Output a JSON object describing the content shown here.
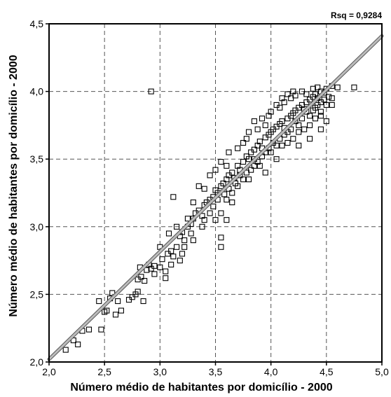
{
  "chart_data": {
    "type": "scatter",
    "xlabel": "Número médio de habitantes por domicílio - 2000",
    "ylabel": "Número médio de habitantes por domicílio - 2000",
    "annotation": "Rsq = 0,9284",
    "xlim": [
      2.0,
      5.0
    ],
    "ylim": [
      2.0,
      4.5
    ],
    "x_ticks": [
      2.0,
      2.5,
      3.0,
      3.5,
      4.0,
      4.5,
      5.0
    ],
    "y_ticks": [
      2.0,
      2.5,
      3.0,
      3.5,
      4.0,
      4.5
    ],
    "x_tick_labels": [
      "2,0",
      "2,5",
      "3,0",
      "3,5",
      "4,0",
      "4,5",
      "5,0"
    ],
    "y_tick_labels": [
      "2,0",
      "2,5",
      "3,0",
      "3,5",
      "4,0",
      "4,5"
    ],
    "grid": true,
    "grid_style": "dashed",
    "marker": "open-square",
    "fit_line": {
      "x": [
        2.0,
        5.0
      ],
      "y": [
        2.02,
        4.41
      ],
      "color": "#bbbbbb"
    },
    "series": [
      {
        "points": [
          [
            2.15,
            2.09
          ],
          [
            2.22,
            2.16
          ],
          [
            2.26,
            2.13
          ],
          [
            2.3,
            2.23
          ],
          [
            2.36,
            2.24
          ],
          [
            2.47,
            2.24
          ],
          [
            2.45,
            2.45
          ],
          [
            2.52,
            2.38
          ],
          [
            2.5,
            2.37
          ],
          [
            2.55,
            2.47
          ],
          [
            2.57,
            2.51
          ],
          [
            2.62,
            2.45
          ],
          [
            2.65,
            2.38
          ],
          [
            2.72,
            2.46
          ],
          [
            2.75,
            2.48
          ],
          [
            2.78,
            2.5
          ],
          [
            2.8,
            2.61
          ],
          [
            2.83,
            2.63
          ],
          [
            2.86,
            2.6
          ],
          [
            2.8,
            2.52
          ],
          [
            2.88,
            2.68
          ],
          [
            2.92,
            2.69
          ],
          [
            2.95,
            2.71
          ],
          [
            3.0,
            2.7
          ],
          [
            3.02,
            2.76
          ],
          [
            3.05,
            2.67
          ],
          [
            3.07,
            2.8
          ],
          [
            3.1,
            2.82
          ],
          [
            3.12,
            2.78
          ],
          [
            3.15,
            2.85
          ],
          [
            3.18,
            2.93
          ],
          [
            3.2,
            2.96
          ],
          [
            3.22,
            2.9
          ],
          [
            3.25,
            3.0
          ],
          [
            3.28,
            3.02
          ],
          [
            3.3,
            3.06
          ],
          [
            3.32,
            3.1
          ],
          [
            3.35,
            3.12
          ],
          [
            3.38,
            3.08
          ],
          [
            3.4,
            3.16
          ],
          [
            3.42,
            3.18
          ],
          [
            3.45,
            3.2
          ],
          [
            3.48,
            3.22
          ],
          [
            3.5,
            3.27
          ],
          [
            3.52,
            3.25
          ],
          [
            3.55,
            3.3
          ],
          [
            3.57,
            3.32
          ],
          [
            3.6,
            3.35
          ],
          [
            3.62,
            3.38
          ],
          [
            3.65,
            3.4
          ],
          [
            3.67,
            3.36
          ],
          [
            3.7,
            3.45
          ],
          [
            3.72,
            3.42
          ],
          [
            3.75,
            3.48
          ],
          [
            3.78,
            3.52
          ],
          [
            3.8,
            3.5
          ],
          [
            3.82,
            3.55
          ],
          [
            3.85,
            3.57
          ],
          [
            3.88,
            3.6
          ],
          [
            3.9,
            3.63
          ],
          [
            3.92,
            3.58
          ],
          [
            3.95,
            3.66
          ],
          [
            3.98,
            3.68
          ],
          [
            4.0,
            3.7
          ],
          [
            4.02,
            3.72
          ],
          [
            4.05,
            3.74
          ],
          [
            4.08,
            3.76
          ],
          [
            4.1,
            3.78
          ],
          [
            4.12,
            3.73
          ],
          [
            4.15,
            3.8
          ],
          [
            4.18,
            3.82
          ],
          [
            4.2,
            3.84
          ],
          [
            4.22,
            3.86
          ],
          [
            4.25,
            3.88
          ],
          [
            4.28,
            3.9
          ],
          [
            4.3,
            3.87
          ],
          [
            4.32,
            3.92
          ],
          [
            4.35,
            3.94
          ],
          [
            4.38,
            3.96
          ],
          [
            4.4,
            3.98
          ],
          [
            4.42,
            3.95
          ],
          [
            4.45,
            4.0
          ],
          [
            4.48,
            3.99
          ],
          [
            4.5,
            4.02
          ],
          [
            4.55,
            4.04
          ],
          [
            4.6,
            4.03
          ],
          [
            4.75,
            4.03
          ],
          [
            2.92,
            4.0
          ],
          [
            3.12,
            3.22
          ],
          [
            3.25,
            3.06
          ],
          [
            3.4,
            3.28
          ],
          [
            3.3,
            3.18
          ],
          [
            3.55,
            2.85
          ],
          [
            3.55,
            2.92
          ],
          [
            3.38,
            3.0
          ],
          [
            3.6,
            3.2
          ],
          [
            3.65,
            3.18
          ],
          [
            3.7,
            3.3
          ],
          [
            3.8,
            3.35
          ],
          [
            3.85,
            3.45
          ],
          [
            3.6,
            3.45
          ],
          [
            3.75,
            3.62
          ],
          [
            3.8,
            3.7
          ],
          [
            3.85,
            3.78
          ],
          [
            3.95,
            3.75
          ],
          [
            4.0,
            3.85
          ],
          [
            4.05,
            3.9
          ],
          [
            4.1,
            3.95
          ],
          [
            4.15,
            3.98
          ],
          [
            4.2,
            4.0
          ],
          [
            4.1,
            3.6
          ],
          [
            4.15,
            3.62
          ],
          [
            4.25,
            3.7
          ],
          [
            4.3,
            3.72
          ],
          [
            4.35,
            3.75
          ],
          [
            4.4,
            3.8
          ],
          [
            4.45,
            3.85
          ],
          [
            4.5,
            3.9
          ],
          [
            4.55,
            3.95
          ],
          [
            4.2,
            3.65
          ],
          [
            4.0,
            3.55
          ],
          [
            3.9,
            3.45
          ],
          [
            4.05,
            3.5
          ],
          [
            3.95,
            3.4
          ],
          [
            4.25,
            3.6
          ],
          [
            4.35,
            3.65
          ],
          [
            4.45,
            3.72
          ],
          [
            4.5,
            3.78
          ],
          [
            3.45,
            3.1
          ],
          [
            3.5,
            3.05
          ],
          [
            3.2,
            2.8
          ],
          [
            3.1,
            2.72
          ],
          [
            3.05,
            2.62
          ],
          [
            2.95,
            2.65
          ],
          [
            3.08,
            2.95
          ],
          [
            3.15,
            3.0
          ],
          [
            2.85,
            2.45
          ],
          [
            2.6,
            2.35
          ],
          [
            2.82,
            2.7
          ],
          [
            3.3,
            2.9
          ],
          [
            3.35,
            3.3
          ],
          [
            3.45,
            3.38
          ],
          [
            3.5,
            3.42
          ],
          [
            3.55,
            3.48
          ],
          [
            3.62,
            3.55
          ],
          [
            3.7,
            3.58
          ],
          [
            3.78,
            3.65
          ],
          [
            3.88,
            3.72
          ],
          [
            3.92,
            3.8
          ],
          [
            3.98,
            3.82
          ],
          [
            4.08,
            3.88
          ],
          [
            4.12,
            3.92
          ],
          [
            4.18,
            3.95
          ],
          [
            4.22,
            3.97
          ],
          [
            4.28,
            4.0
          ],
          [
            4.32,
            3.98
          ],
          [
            4.38,
            4.02
          ],
          [
            4.42,
            4.03
          ],
          [
            4.28,
            3.8
          ],
          [
            4.32,
            3.85
          ],
          [
            4.22,
            3.78
          ],
          [
            4.18,
            3.72
          ],
          [
            4.12,
            3.68
          ],
          [
            4.08,
            3.65
          ],
          [
            4.02,
            3.62
          ],
          [
            3.98,
            3.58
          ],
          [
            3.92,
            3.52
          ],
          [
            3.88,
            3.48
          ],
          [
            3.82,
            3.42
          ],
          [
            3.78,
            3.4
          ],
          [
            3.72,
            3.38
          ],
          [
            3.68,
            3.32
          ],
          [
            3.62,
            3.28
          ],
          [
            3.58,
            3.24
          ],
          [
            3.52,
            3.2
          ],
          [
            3.48,
            3.15
          ],
          [
            4.4,
            3.88
          ],
          [
            4.45,
            3.92
          ],
          [
            4.48,
            3.94
          ],
          [
            4.38,
            3.86
          ],
          [
            4.42,
            3.9
          ],
          [
            4.52,
            3.96
          ],
          [
            3.4,
            3.05
          ],
          [
            3.28,
            2.95
          ],
          [
            3.22,
            2.85
          ],
          [
            3.18,
            2.75
          ],
          [
            3.0,
            2.85
          ],
          [
            2.9,
            2.72
          ],
          [
            3.55,
            3.1
          ],
          [
            3.6,
            3.05
          ],
          [
            3.65,
            3.25
          ],
          [
            3.75,
            3.35
          ],
          [
            3.85,
            3.5
          ],
          [
            3.95,
            3.55
          ],
          [
            4.05,
            3.6
          ],
          [
            4.15,
            3.7
          ],
          [
            4.25,
            3.75
          ],
          [
            4.35,
            3.82
          ],
          [
            4.45,
            3.82
          ],
          [
            4.55,
            3.9
          ]
        ]
      }
    ]
  }
}
